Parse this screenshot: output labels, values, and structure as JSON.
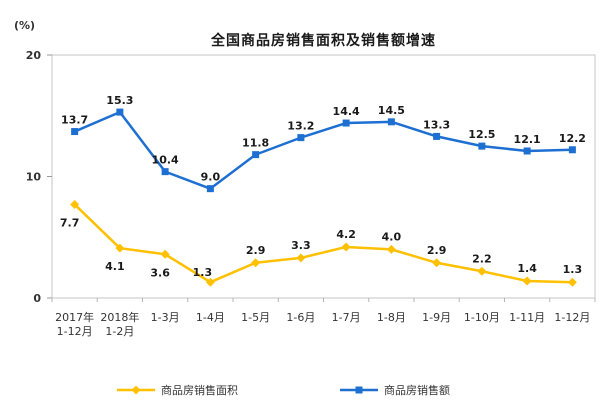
{
  "chart_data": {
    "type": "line",
    "title": "全国商品房销售面积及销售额增速",
    "ylabel": "(%)",
    "xlabel": "",
    "categories": [
      "2017年1-12月",
      "2018年1-2月",
      "1-3月",
      "1-4月",
      "1-5月",
      "1-6月",
      "1-7月",
      "1-8月",
      "1-9月",
      "1-10月",
      "1-11月",
      "1-12月"
    ],
    "series": [
      {
        "name": "商品房销售面积",
        "marker": "diamond",
        "color": "#FFC000",
        "values": [
          7.7,
          4.1,
          3.6,
          1.3,
          2.9,
          3.3,
          4.2,
          4.0,
          2.9,
          2.2,
          1.4,
          1.3
        ]
      },
      {
        "name": "商品房销售额",
        "marker": "square",
        "color": "#1E6FD2",
        "values": [
          13.7,
          15.3,
          10.4,
          9.0,
          11.8,
          13.2,
          14.4,
          14.5,
          13.3,
          12.5,
          12.1,
          12.2
        ]
      }
    ],
    "yticks": [
      0,
      10,
      20
    ],
    "ylim": [
      0,
      20
    ],
    "grid": false,
    "legend_position": "bottom",
    "data_labels_shown": true
  }
}
